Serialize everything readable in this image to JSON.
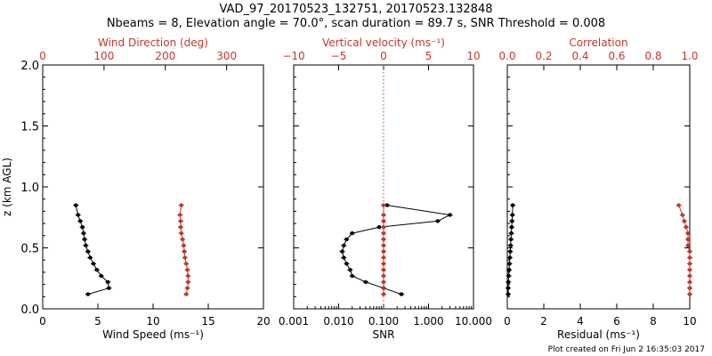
{
  "title": "VAD_97_20170523_132751, 20170523.132848",
  "subtitle": "Nbeams = 8, Elevation angle = 70.0°, scan duration = 89.7 s, SNR Threshold = 0.008",
  "footer": "Plot created on Fri Jun  2 16:35:03 2017",
  "colors": {
    "primary": "#000000",
    "secondary": "#c0392b"
  },
  "chart_data": [
    {
      "type": "line",
      "ylabel": "z (km AGL)",
      "ylim": [
        0,
        2
      ],
      "yticks": [
        "0.0",
        "0.5",
        "1.0",
        "1.5",
        "2.0"
      ],
      "bottom_axis": {
        "label": "Wind Speed (ms⁻¹)",
        "range": [
          0,
          20
        ],
        "ticks": [
          "0",
          "5",
          "10",
          "15",
          "20"
        ],
        "scale": "linear"
      },
      "top_axis": {
        "label": "Wind Direction (deg)",
        "range": [
          0,
          360
        ],
        "ticks": [
          "0",
          "100",
          "200",
          "300"
        ],
        "scale": "linear"
      },
      "series": [
        {
          "axis": "bottom",
          "color": "#000000",
          "x": [
            4.1,
            6.0,
            5.9,
            5.3,
            4.9,
            4.6,
            4.3,
            4.1,
            3.9,
            3.8,
            3.7,
            3.6,
            3.4,
            3.2,
            3.0
          ],
          "y": [
            0.12,
            0.17,
            0.22,
            0.27,
            0.32,
            0.37,
            0.42,
            0.47,
            0.52,
            0.57,
            0.62,
            0.67,
            0.72,
            0.77,
            0.85
          ]
        },
        {
          "axis": "top",
          "color": "#c0392b",
          "x": [
            234,
            236,
            237,
            237,
            236,
            234,
            232,
            231,
            230,
            228,
            226,
            225,
            225,
            224,
            226
          ],
          "y": [
            0.12,
            0.17,
            0.22,
            0.27,
            0.32,
            0.37,
            0.42,
            0.47,
            0.52,
            0.57,
            0.62,
            0.67,
            0.72,
            0.77,
            0.85
          ]
        }
      ]
    },
    {
      "type": "line",
      "ylim": [
        0,
        2
      ],
      "bottom_axis": {
        "label": "SNR",
        "range": [
          0.001,
          10
        ],
        "ticks": [
          "0.001",
          "0.010",
          "0.100",
          "1.000",
          "10.000"
        ],
        "scale": "log"
      },
      "top_axis": {
        "label": "Vertical velocity (ms⁻¹)",
        "range": [
          -10,
          10
        ],
        "ticks": [
          "−10",
          "−5",
          "0",
          "5",
          "10"
        ],
        "scale": "linear",
        "reference_line": 0
      },
      "series": [
        {
          "axis": "bottom",
          "color": "#000000",
          "x": [
            0.25,
            0.1,
            0.04,
            0.02,
            0.018,
            0.015,
            0.013,
            0.012,
            0.013,
            0.015,
            0.02,
            0.08,
            1.6,
            3.0,
            0.12
          ],
          "y": [
            0.12,
            0.17,
            0.22,
            0.27,
            0.32,
            0.37,
            0.42,
            0.47,
            0.52,
            0.57,
            0.62,
            0.67,
            0.72,
            0.77,
            0.85
          ]
        },
        {
          "axis": "top",
          "color": "#c0392b",
          "x": [
            0,
            0,
            0,
            0,
            0,
            0,
            0,
            0,
            0,
            0,
            0,
            0,
            0,
            0,
            0
          ],
          "y": [
            0.12,
            0.17,
            0.22,
            0.27,
            0.32,
            0.37,
            0.42,
            0.47,
            0.52,
            0.57,
            0.62,
            0.67,
            0.72,
            0.77,
            0.85
          ]
        }
      ]
    },
    {
      "type": "line",
      "ylim": [
        0,
        2
      ],
      "bottom_axis": {
        "label": "Residual (ms⁻¹)",
        "range": [
          0,
          10
        ],
        "ticks": [
          "0",
          "2",
          "4",
          "6",
          "8",
          "10"
        ],
        "scale": "linear"
      },
      "top_axis": {
        "label": "Correlation",
        "range": [
          0,
          1
        ],
        "ticks": [
          "0.0",
          "0.2",
          "0.4",
          "0.6",
          "0.8",
          "1.0"
        ],
        "scale": "linear"
      },
      "series": [
        {
          "axis": "bottom",
          "color": "#000000",
          "x": [
            0.05,
            0.05,
            0.06,
            0.08,
            0.1,
            0.12,
            0.14,
            0.16,
            0.18,
            0.2,
            0.22,
            0.24,
            0.26,
            0.28,
            0.3
          ],
          "y": [
            0.12,
            0.17,
            0.22,
            0.27,
            0.32,
            0.37,
            0.42,
            0.47,
            0.52,
            0.57,
            0.62,
            0.67,
            0.72,
            0.77,
            0.85
          ]
        },
        {
          "axis": "top",
          "color": "#c0392b",
          "x": [
            1.0,
            1.0,
            1.0,
            1.0,
            1.0,
            1.0,
            1.0,
            1.0,
            0.99,
            0.99,
            0.99,
            0.98,
            0.97,
            0.96,
            0.94
          ],
          "y": [
            0.12,
            0.17,
            0.22,
            0.27,
            0.32,
            0.37,
            0.42,
            0.47,
            0.52,
            0.57,
            0.62,
            0.67,
            0.72,
            0.77,
            0.85
          ]
        }
      ]
    }
  ]
}
